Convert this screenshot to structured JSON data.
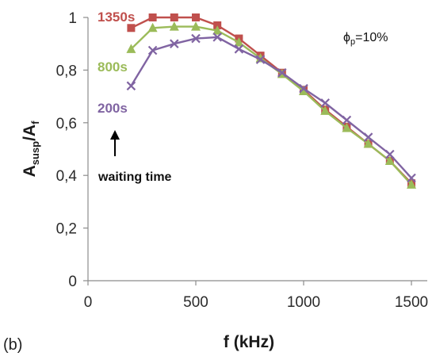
{
  "panel_label": "(b)",
  "chart_data": {
    "type": "line",
    "xlabel": "f (kHz)",
    "ylabel_main": "A",
    "ylabel_sub1": "susp",
    "ylabel_mid": "/A",
    "ylabel_sub2": "f",
    "xlim": [
      0,
      1500
    ],
    "ylim": [
      0,
      1
    ],
    "x_ticks": [
      0,
      500,
      1000,
      1500
    ],
    "x_tick_labels": [
      "0",
      "500",
      "1000",
      "1500"
    ],
    "y_ticks": [
      0,
      0.2,
      0.4,
      0.6,
      0.8,
      1
    ],
    "y_tick_labels": [
      "0",
      "0,2",
      "0,4",
      "0,6",
      "0,8",
      "1"
    ],
    "grid": false,
    "x": [
      200,
      300,
      400,
      500,
      600,
      700,
      800,
      900,
      1000,
      1100,
      1200,
      1300,
      1400,
      1500
    ],
    "series": [
      {
        "name": "1350s",
        "color": "#c0504d",
        "marker": "square",
        "values": [
          0.96,
          1.0,
          1.0,
          1.0,
          0.97,
          0.92,
          0.855,
          0.79,
          0.725,
          0.65,
          0.585,
          0.52,
          0.455,
          0.37
        ]
      },
      {
        "name": "800s",
        "color": "#9bbb59",
        "marker": "triangle",
        "values": [
          0.88,
          0.96,
          0.965,
          0.965,
          0.95,
          0.905,
          0.845,
          0.785,
          0.72,
          0.645,
          0.58,
          0.52,
          0.455,
          0.365
        ]
      },
      {
        "name": "200s",
        "color": "#8064a2",
        "marker": "x",
        "values": [
          0.74,
          0.875,
          0.9,
          0.92,
          0.925,
          0.88,
          0.84,
          0.79,
          0.73,
          0.675,
          0.61,
          0.545,
          0.48,
          0.39
        ]
      }
    ],
    "annotations": {
      "waiting_time": "waiting time",
      "phi_symbol": "ϕ",
      "phi_sub": "p",
      "phi_value": "=10%"
    }
  }
}
